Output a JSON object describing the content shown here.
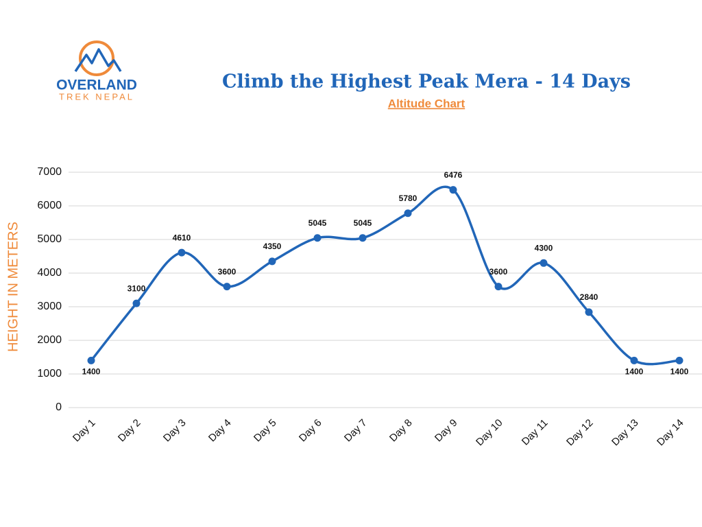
{
  "logo": {
    "name": "OVERLAND",
    "tagline": "TREK NEPAL"
  },
  "chart_data": {
    "type": "line",
    "title": "Climb the Highest Peak Mera - 14 Days",
    "subtitle": "Altitude Chart",
    "y_label": "HEIGHT IN METERS",
    "categories": [
      "Day 1",
      "Day 2",
      "Day 3",
      "Day 4",
      "Day 5",
      "Day 6",
      "Day 7",
      "Day 8",
      "Day 9",
      "Day 10",
      "Day 11",
      "Day 12",
      "Day 13",
      "Day 14"
    ],
    "values": [
      1400,
      3100,
      4610,
      3600,
      4350,
      5045,
      5045,
      5780,
      6476,
      3600,
      4300,
      2840,
      1400,
      1400
    ],
    "color": "#2166b8",
    "ylim": [
      0,
      7000
    ],
    "yticks": [
      0,
      1000,
      2000,
      3000,
      4000,
      5000,
      6000,
      7000
    ],
    "grid": true
  }
}
